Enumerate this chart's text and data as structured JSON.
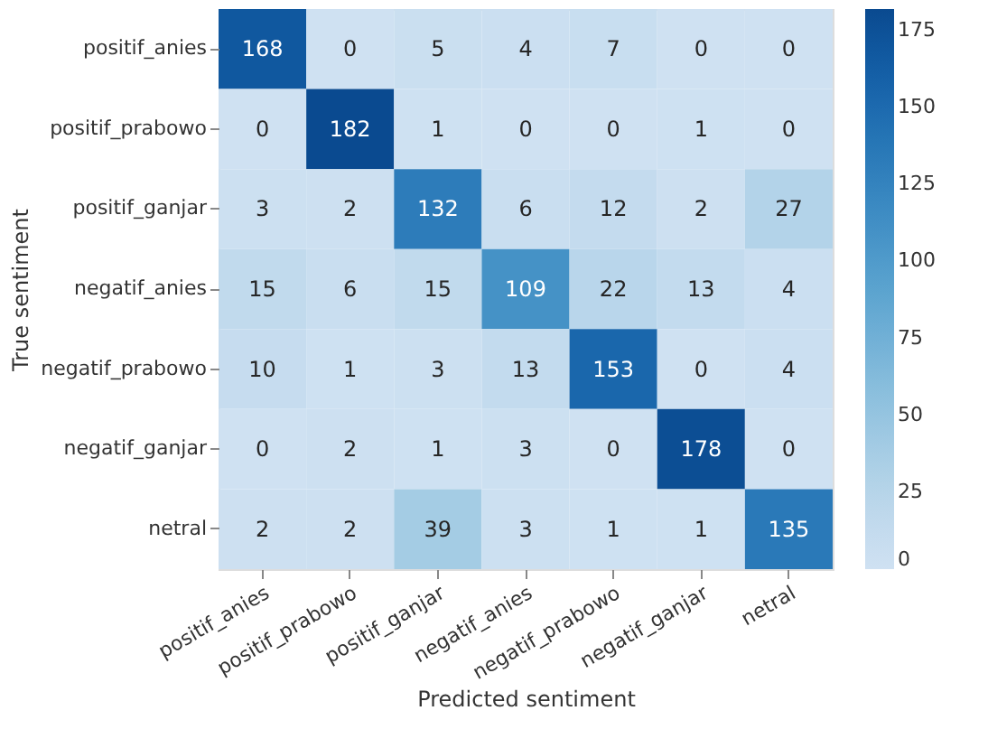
{
  "chart_data": {
    "type": "heatmap",
    "xlabel": "Predicted sentiment",
    "ylabel": "True sentiment",
    "categories": [
      "positif_anies",
      "positif_prabowo",
      "positif_ganjar",
      "negatif_anies",
      "negatif_prabowo",
      "negatif_ganjar",
      "netral"
    ],
    "y_categories": [
      "positif_anies",
      "positif_prabowo",
      "positif_ganjar",
      "negatif_anies",
      "negatif_prabowo",
      "negatif_ganjar",
      "netral"
    ],
    "cells": [
      [
        168,
        0,
        5,
        4,
        7,
        0,
        0
      ],
      [
        0,
        182,
        1,
        0,
        0,
        1,
        0
      ],
      [
        3,
        2,
        132,
        6,
        12,
        2,
        27
      ],
      [
        15,
        6,
        15,
        109,
        22,
        13,
        4
      ],
      [
        10,
        1,
        3,
        13,
        153,
        0,
        4
      ],
      [
        0,
        2,
        1,
        3,
        0,
        178,
        0
      ],
      [
        2,
        2,
        39,
        3,
        1,
        1,
        135
      ]
    ],
    "data_labels": true,
    "clim": [
      0,
      182
    ],
    "cticks": [
      0,
      25,
      50,
      75,
      100,
      125,
      150,
      175
    ]
  }
}
